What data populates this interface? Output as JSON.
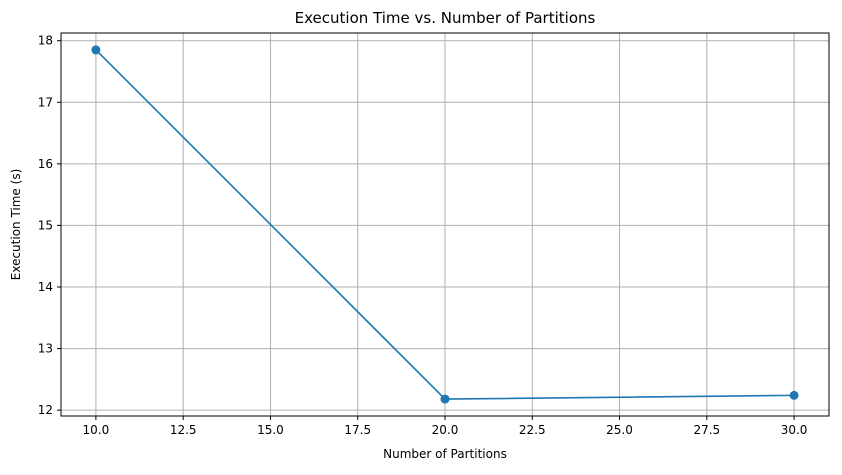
{
  "chart_data": {
    "type": "line",
    "title": "Execution Time vs. Number of Partitions",
    "xlabel": "Number of Partitions",
    "ylabel": "Execution Time (s)",
    "x": [
      10,
      20,
      30
    ],
    "series": [
      {
        "values": [
          17.85,
          12.18,
          12.24
        ],
        "color": "#1f77b4",
        "marker": "circle"
      }
    ],
    "xlim": [
      9.0,
      31.0
    ],
    "ylim": [
      11.905,
      18.125
    ],
    "xticks": [
      10.0,
      12.5,
      15.0,
      17.5,
      20.0,
      22.5,
      25.0,
      27.5,
      30.0
    ],
    "xtick_labels": [
      "10.0",
      "12.5",
      "15.0",
      "17.5",
      "20.0",
      "22.5",
      "25.0",
      "27.5",
      "30.0"
    ],
    "yticks": [
      12,
      13,
      14,
      15,
      16,
      17,
      18
    ],
    "ytick_labels": [
      "12",
      "13",
      "14",
      "15",
      "16",
      "17",
      "18"
    ],
    "grid": true,
    "legend": "none"
  }
}
